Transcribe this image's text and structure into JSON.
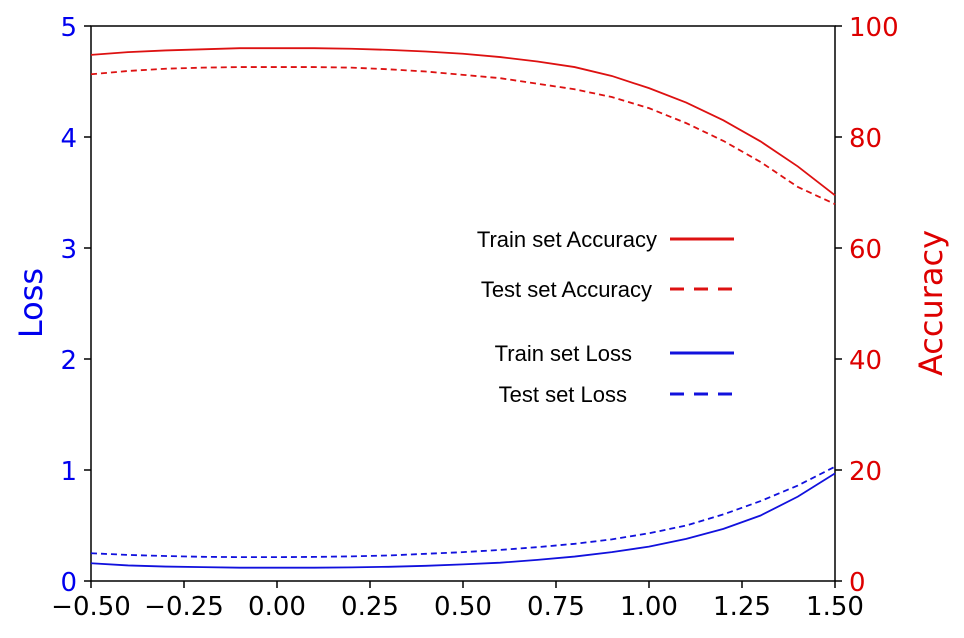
{
  "chart_data": {
    "type": "line",
    "title": "",
    "xlabel": "",
    "xlim": [
      -0.5,
      1.5
    ],
    "x_ticks": [
      -0.5,
      -0.25,
      0.0,
      0.25,
      0.5,
      0.75,
      1.0,
      1.25,
      1.5
    ],
    "x_tick_labels": [
      "−0.50",
      "−0.25",
      "0.00",
      "0.25",
      "0.50",
      "0.75",
      "1.00",
      "1.25",
      "1.50"
    ],
    "left_axis": {
      "label": "Loss",
      "color": "#0000ee",
      "ylim": [
        0,
        5
      ],
      "ticks": [
        0,
        1,
        2,
        3,
        4,
        5
      ],
      "tick_labels": [
        "0",
        "1",
        "2",
        "3",
        "4",
        "5"
      ]
    },
    "right_axis": {
      "label": "Accuracy",
      "color": "#dd0000",
      "ylim": [
        0,
        100
      ],
      "ticks": [
        0,
        20,
        40,
        60,
        80,
        100
      ],
      "tick_labels": [
        "0",
        "20",
        "40",
        "60",
        "80",
        "100"
      ]
    },
    "x": [
      -0.5,
      -0.4,
      -0.3,
      -0.2,
      -0.1,
      0.0,
      0.1,
      0.2,
      0.3,
      0.4,
      0.5,
      0.6,
      0.7,
      0.8,
      0.9,
      1.0,
      1.1,
      1.2,
      1.3,
      1.4,
      1.5
    ],
    "series": [
      {
        "name": "Train set Accuracy",
        "axis": "right",
        "color": "#dd1111",
        "dash": "solid",
        "values": [
          94.8,
          95.3,
          95.6,
          95.8,
          96.0,
          96.0,
          96.0,
          95.9,
          95.7,
          95.4,
          95.0,
          94.4,
          93.6,
          92.6,
          91.0,
          88.8,
          86.2,
          83.0,
          79.2,
          74.7,
          69.5
        ]
      },
      {
        "name": "Test set Accuracy",
        "axis": "right",
        "color": "#dd1111",
        "dash": "dashed",
        "values": [
          91.3,
          91.9,
          92.3,
          92.5,
          92.6,
          92.6,
          92.6,
          92.5,
          92.2,
          91.8,
          91.2,
          90.6,
          89.6,
          88.6,
          87.2,
          85.2,
          82.5,
          79.3,
          75.5,
          71.0,
          67.9
        ]
      },
      {
        "name": "Train set Loss",
        "axis": "left",
        "color": "#1111dd",
        "dash": "solid",
        "values": [
          0.16,
          0.14,
          0.13,
          0.125,
          0.12,
          0.12,
          0.12,
          0.123,
          0.128,
          0.137,
          0.15,
          0.165,
          0.19,
          0.22,
          0.26,
          0.31,
          0.38,
          0.47,
          0.59,
          0.76,
          0.97
        ]
      },
      {
        "name": "Test set Loss",
        "axis": "left",
        "color": "#1111dd",
        "dash": "dashed",
        "values": [
          0.25,
          0.235,
          0.225,
          0.218,
          0.215,
          0.215,
          0.217,
          0.222,
          0.23,
          0.245,
          0.26,
          0.28,
          0.305,
          0.335,
          0.375,
          0.43,
          0.5,
          0.6,
          0.72,
          0.86,
          1.03
        ]
      }
    ],
    "legend": {
      "placement": "center-right",
      "entries": [
        {
          "label": "Train set Accuracy",
          "color": "#dd1111",
          "dash": "solid"
        },
        {
          "label": "Test set Accuracy",
          "color": "#dd1111",
          "dash": "dashed"
        },
        {
          "label": "Train set Loss",
          "color": "#1111dd",
          "dash": "solid"
        },
        {
          "label": "Test set Loss",
          "color": "#1111dd",
          "dash": "dashed"
        }
      ]
    }
  }
}
